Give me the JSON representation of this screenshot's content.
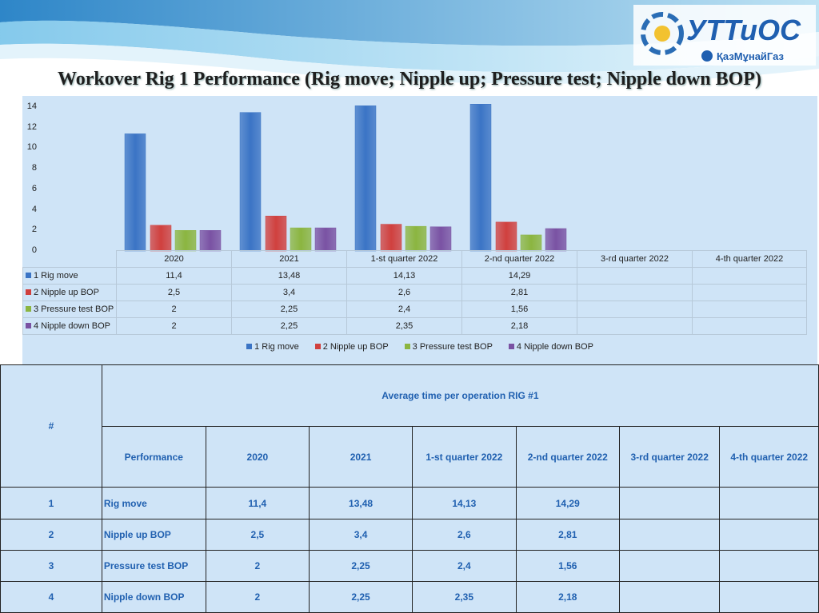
{
  "title": "Workover Rig 1 Performance (Rig move; Nipple up; Pressure test; Nipple down BOP)",
  "logo": {
    "brand": "УТТиОС",
    "sub": "ҚазМұнайГаз"
  },
  "chart_data": {
    "type": "bar",
    "categories": [
      "2020",
      "2021",
      "1-st quarter 2022",
      "2-nd quarter 2022",
      "3-rd quarter 2022",
      "4-th quarter 2022"
    ],
    "series": [
      {
        "name": "1 Rig move",
        "color": "#3b74c5",
        "values": [
          11.4,
          13.48,
          14.13,
          14.29,
          null,
          null
        ],
        "labels": [
          "11,4",
          "13,48",
          "14,13",
          "14,29",
          "",
          ""
        ]
      },
      {
        "name": "2 Nipple up BOP",
        "color": "#d0403e",
        "values": [
          2.5,
          3.4,
          2.6,
          2.81,
          null,
          null
        ],
        "labels": [
          "2,5",
          "3,4",
          "2,6",
          "2,81",
          "",
          ""
        ]
      },
      {
        "name": "3 Pressure test BOP",
        "color": "#8bb540",
        "values": [
          2,
          2.25,
          2.4,
          1.56,
          null,
          null
        ],
        "labels": [
          "2",
          "2,25",
          "2,4",
          "1,56",
          "",
          ""
        ]
      },
      {
        "name": "4 Nipple down BOP",
        "color": "#7a52a3",
        "values": [
          2,
          2.25,
          2.35,
          2.18,
          null,
          null
        ],
        "labels": [
          "2",
          "2,25",
          "2,35",
          "2,18",
          "",
          ""
        ]
      }
    ],
    "yticks": [
      "0",
      "2",
      "4",
      "6",
      "8",
      "10",
      "12",
      "14"
    ],
    "ylim": [
      0,
      14
    ],
    "legend_position": "bottom"
  },
  "stats_table": {
    "hash": "#",
    "heading": "Average time per operation RIG #1",
    "performance_label": "Performance",
    "columns": [
      "2020",
      "2021",
      "1-st quarter 2022",
      "2-nd quarter 2022",
      "3-rd quarter 2022",
      "4-th quarter 2022"
    ],
    "rows": [
      {
        "num": "1",
        "name": "Rig move",
        "vals": [
          "11,4",
          "13,48",
          "14,13",
          "14,29",
          "",
          ""
        ]
      },
      {
        "num": "2",
        "name": "Nipple up BOP",
        "vals": [
          "2,5",
          "3,4",
          "2,6",
          "2,81",
          "",
          ""
        ]
      },
      {
        "num": "3",
        "name": "Pressure test BOP",
        "vals": [
          "2",
          "2,25",
          "2,4",
          "1,56",
          "",
          ""
        ]
      },
      {
        "num": "4",
        "name": "Nipple down BOP",
        "vals": [
          "2",
          "2,25",
          "2,35",
          "2,18",
          "",
          ""
        ]
      }
    ]
  }
}
